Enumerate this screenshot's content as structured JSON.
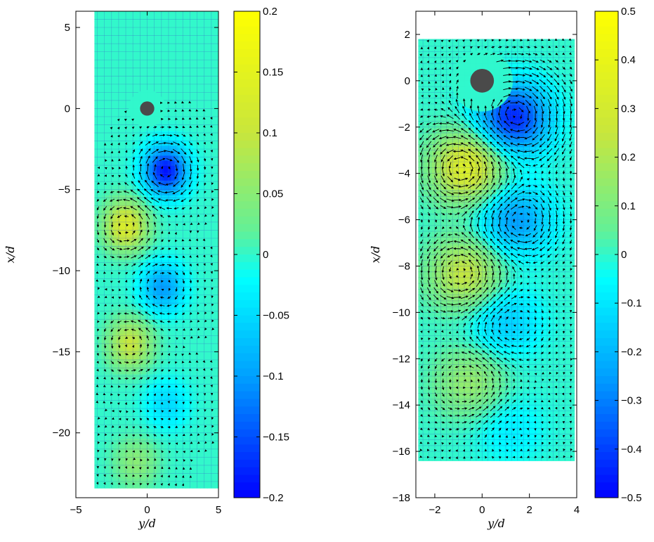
{
  "chart_data": [
    {
      "type": "heatmap",
      "xlabel": "y/d",
      "ylabel": "x/d",
      "xlim": [
        -5,
        5
      ],
      "ylim": [
        -24,
        6
      ],
      "xticks": [
        -5,
        0,
        5
      ],
      "yticks": [
        5,
        0,
        -5,
        -10,
        -15,
        -20
      ],
      "tick_labels": {
        "x": [
          "−5",
          "0",
          "5"
        ],
        "y": [
          "5",
          "0",
          "−5",
          "−10",
          "−15",
          "−20"
        ]
      },
      "domain": {
        "x": [
          -3.7,
          5.0
        ],
        "y": [
          -23.4,
          6.0
        ]
      },
      "cylinder": {
        "x": 0,
        "y": 0,
        "diameter": 1
      },
      "colorbar": {
        "range": [
          -0.2,
          0.2
        ],
        "ticks": [
          0.2,
          0.15,
          0.1,
          0.05,
          0,
          -0.05,
          -0.1,
          -0.15,
          -0.2
        ],
        "labels": [
          "0.2",
          "0.15",
          "0.1",
          "0.05",
          "0",
          "−0.05",
          "−0.1",
          "−0.15",
          "−0.2"
        ]
      },
      "vortices": [
        {
          "x": 1.3,
          "y": -3.8,
          "value": -0.19
        },
        {
          "x": -1.5,
          "y": -7.2,
          "value": 0.13
        },
        {
          "x": 1.1,
          "y": -11.0,
          "value": -0.1
        },
        {
          "x": -1.2,
          "y": -14.5,
          "value": 0.1
        },
        {
          "x": 1.4,
          "y": -18.2,
          "value": -0.05
        },
        {
          "x": -0.8,
          "y": -21.8,
          "value": 0.05
        }
      ]
    },
    {
      "type": "heatmap",
      "xlabel": "y/d",
      "ylabel": "x/d",
      "xlim": [
        -2.8,
        4.0
      ],
      "ylim": [
        -18,
        3
      ],
      "xticks": [
        -2,
        0,
        2,
        4
      ],
      "yticks": [
        2,
        0,
        -2,
        -4,
        -6,
        -8,
        -10,
        -12,
        -14,
        -16,
        -18
      ],
      "tick_labels": {
        "x": [
          "−2",
          "0",
          "2",
          "4"
        ],
        "y": [
          "2",
          "0",
          "−2",
          "−4",
          "−6",
          "−8",
          "−10",
          "−12",
          "−14",
          "−16",
          "−18"
        ]
      },
      "domain": {
        "x": [
          -2.7,
          3.9
        ],
        "y": [
          -16.4,
          1.8
        ]
      },
      "cylinder": {
        "x": 0,
        "y": 0,
        "diameter": 1
      },
      "colorbar": {
        "range": [
          -0.5,
          0.5
        ],
        "ticks": [
          0.5,
          0.4,
          0.3,
          0.2,
          0.1,
          0,
          -0.1,
          -0.2,
          -0.3,
          -0.4,
          -0.5
        ],
        "labels": [
          "0.5",
          "0.4",
          "0.3",
          "0.2",
          "0.1",
          "0",
          "−0.1",
          "−0.2",
          "−0.3",
          "−0.4",
          "−0.5"
        ]
      },
      "vortices": [
        {
          "x": 1.3,
          "y": -1.6,
          "value": -0.45
        },
        {
          "x": -0.6,
          "y": -3.7,
          "value": 0.35
        },
        {
          "x": 1.4,
          "y": -6.0,
          "value": -0.25
        },
        {
          "x": -0.7,
          "y": -8.3,
          "value": 0.25
        },
        {
          "x": 1.0,
          "y": -10.4,
          "value": -0.15
        },
        {
          "x": -0.5,
          "y": -13.0,
          "value": 0.15
        },
        {
          "x": 1.2,
          "y": -15.0,
          "value": -0.08
        }
      ]
    }
  ]
}
